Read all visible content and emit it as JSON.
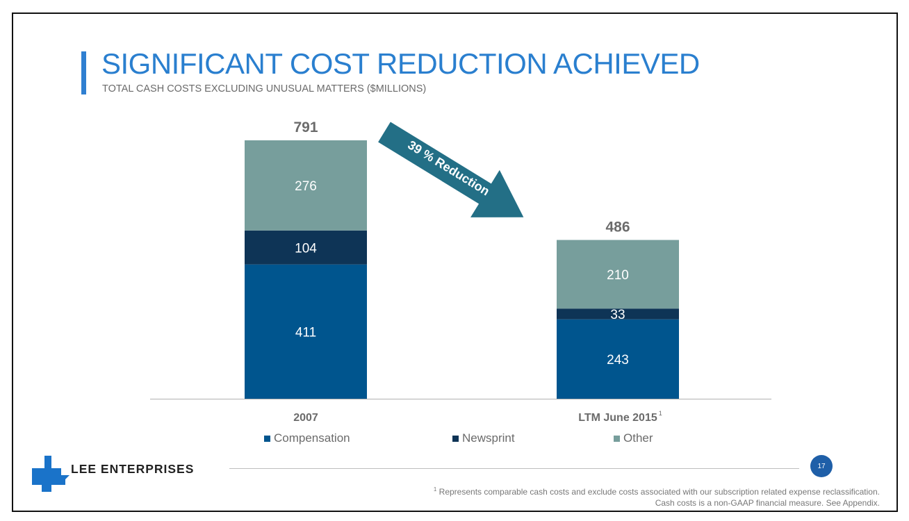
{
  "slide": {
    "title": "SIGNIFICANT COST REDUCTION ACHIEVED",
    "subtitle": "TOTAL CASH COSTS EXCLUDING UNUSUAL MATTERS ($MILLIONS)",
    "annotation": "39 % Reduction",
    "logo_text": "LEE ENTERPRISES",
    "page_number": "17",
    "footnote_marker": "1",
    "footnote_line1": "Represents comparable cash costs and exclude costs associated with our subscription related expense reclassification.",
    "footnote_line2": "Cash costs is a non-GAAP financial measure. See Appendix."
  },
  "colors": {
    "title": "#2a7fcf",
    "compensation": "#00558e",
    "newsprint": "#0e3456",
    "other": "#779e9c",
    "arrow": "#236f86",
    "badge": "#1f5fa8"
  },
  "chart_data": {
    "type": "bar",
    "stacked": true,
    "title": "TOTAL CASH COSTS EXCLUDING UNUSUAL MATTERS ($MILLIONS)",
    "xlabel": "",
    "ylabel": "",
    "ylim": [
      0,
      791
    ],
    "grid": false,
    "legend_position": "bottom",
    "categories": [
      "2007",
      "LTM June 2015"
    ],
    "category_superscripts": [
      "",
      "1"
    ],
    "series": [
      {
        "name": "Compensation",
        "color": "#00558e",
        "values": [
          411,
          243
        ]
      },
      {
        "name": "Newsprint",
        "color": "#0e3456",
        "values": [
          104,
          33
        ]
      },
      {
        "name": "Other",
        "color": "#779e9c",
        "values": [
          276,
          210
        ]
      }
    ],
    "totals": [
      791,
      486
    ],
    "annotations": [
      "39 % Reduction"
    ]
  }
}
